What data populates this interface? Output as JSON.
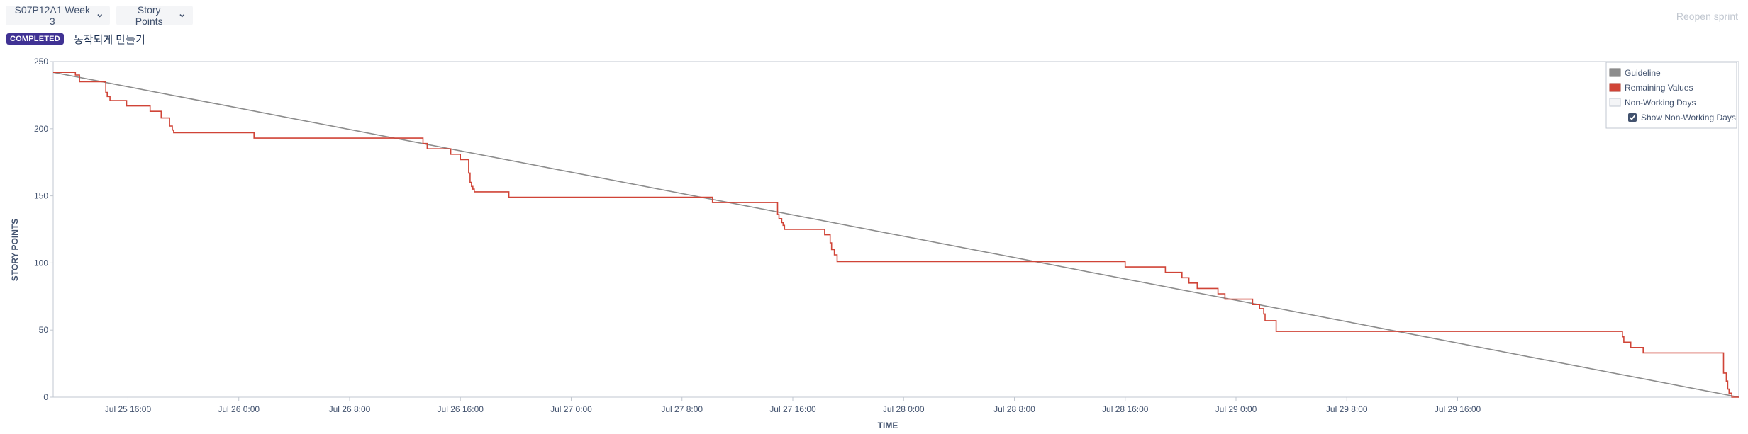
{
  "header": {
    "sprint_select": "S07P12A1 Week 3",
    "statistic_select": "Story Points",
    "reopen_label": "Reopen sprint",
    "status_badge": "COMPLETED",
    "sprint_goal": "동작되게 만들기"
  },
  "colors": {
    "guideline": "#8c8c8c",
    "remaining": "#d04437",
    "badge": "#403294"
  },
  "chart_data": {
    "type": "line",
    "xlabel": "TIME",
    "ylabel": "STORY POINTS",
    "ylim": [
      0,
      250
    ],
    "yticks": [
      0,
      50,
      100,
      150,
      200,
      250
    ],
    "xlim_hours": [
      -5.4,
      116.3
    ],
    "x_reference": "Jul 25 16:00",
    "xticks": [
      {
        "h": 0,
        "label": "Jul 25 16:00"
      },
      {
        "h": 8,
        "label": "Jul 26 0:00"
      },
      {
        "h": 16,
        "label": "Jul 26 8:00"
      },
      {
        "h": 24,
        "label": "Jul 26 16:00"
      },
      {
        "h": 32,
        "label": "Jul 27 0:00"
      },
      {
        "h": 40,
        "label": "Jul 27 8:00"
      },
      {
        "h": 48,
        "label": "Jul 27 16:00"
      },
      {
        "h": 56,
        "label": "Jul 28 0:00"
      },
      {
        "h": 64,
        "label": "Jul 28 8:00"
      },
      {
        "h": 72,
        "label": "Jul 28 16:00"
      },
      {
        "h": 80,
        "label": "Jul 29 0:00"
      },
      {
        "h": 88,
        "label": "Jul 29 8:00"
      },
      {
        "h": 96,
        "label": "Jul 29 16:00"
      }
    ],
    "legend": {
      "items": [
        "Guideline",
        "Remaining Values",
        "Non-Working Days"
      ],
      "checkbox_label": "Show Non-Working Days",
      "checkbox_checked": true,
      "position": "top-right"
    },
    "series": [
      {
        "name": "Guideline",
        "points": [
          [
            -5.4,
            242
          ],
          [
            116.3,
            0
          ]
        ]
      },
      {
        "name": "Remaining Values",
        "step": true,
        "points": [
          [
            -5.4,
            242
          ],
          [
            -3.8,
            240
          ],
          [
            -3.5,
            235
          ],
          [
            -1.7,
            235
          ],
          [
            -1.6,
            227
          ],
          [
            -1.5,
            224
          ],
          [
            -1.3,
            221
          ],
          [
            -0.2,
            221
          ],
          [
            -0.1,
            217
          ],
          [
            1.5,
            217
          ],
          [
            1.6,
            213
          ],
          [
            2.3,
            213
          ],
          [
            2.4,
            208
          ],
          [
            2.9,
            208
          ],
          [
            3.0,
            202
          ],
          [
            3.2,
            199
          ],
          [
            3.3,
            197
          ],
          [
            9.0,
            197
          ],
          [
            9.1,
            193
          ],
          [
            21.1,
            193
          ],
          [
            21.3,
            189
          ],
          [
            21.6,
            185
          ],
          [
            23.2,
            185
          ],
          [
            23.3,
            181
          ],
          [
            23.9,
            181
          ],
          [
            24.0,
            177
          ],
          [
            24.5,
            177
          ],
          [
            24.6,
            167
          ],
          [
            24.7,
            160
          ],
          [
            24.8,
            157
          ],
          [
            24.9,
            155
          ],
          [
            25.0,
            153
          ],
          [
            27.4,
            153
          ],
          [
            27.5,
            149
          ],
          [
            42.1,
            149
          ],
          [
            42.2,
            145
          ],
          [
            46.8,
            145
          ],
          [
            46.9,
            136
          ],
          [
            47.0,
            133
          ],
          [
            47.2,
            130
          ],
          [
            47.3,
            128
          ],
          [
            47.4,
            125
          ],
          [
            50.2,
            125
          ],
          [
            50.3,
            121
          ],
          [
            50.6,
            121
          ],
          [
            50.7,
            115
          ],
          [
            50.8,
            110
          ],
          [
            51.0,
            106
          ],
          [
            51.2,
            101
          ],
          [
            71.9,
            101
          ],
          [
            72.0,
            97
          ],
          [
            74.8,
            97
          ],
          [
            74.9,
            93
          ],
          [
            76.0,
            93
          ],
          [
            76.1,
            89
          ],
          [
            76.5,
            89
          ],
          [
            76.6,
            85
          ],
          [
            77.1,
            85
          ],
          [
            77.2,
            81
          ],
          [
            78.6,
            81
          ],
          [
            78.7,
            77
          ],
          [
            79.1,
            77
          ],
          [
            79.2,
            73
          ],
          [
            81.1,
            73
          ],
          [
            81.2,
            69
          ],
          [
            81.6,
            69
          ],
          [
            81.7,
            66
          ],
          [
            81.9,
            66
          ],
          [
            82.0,
            62
          ],
          [
            82.1,
            57
          ],
          [
            82.8,
            57
          ],
          [
            82.9,
            49
          ],
          [
            107.8,
            49
          ],
          [
            107.9,
            45
          ],
          [
            108.0,
            41
          ],
          [
            108.4,
            41
          ],
          [
            108.5,
            37
          ],
          [
            109.3,
            37
          ],
          [
            109.4,
            33
          ],
          [
            115.1,
            33
          ],
          [
            115.2,
            18
          ],
          [
            115.4,
            12
          ],
          [
            115.5,
            6
          ],
          [
            115.6,
            3
          ],
          [
            115.8,
            0
          ],
          [
            116.3,
            0
          ]
        ]
      }
    ]
  }
}
